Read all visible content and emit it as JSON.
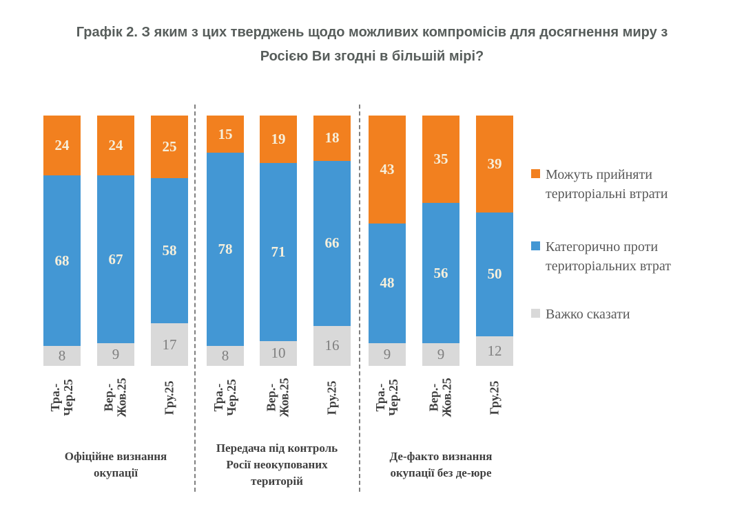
{
  "title": "Графік 2. З яким з цих тверджень щодо можливих компромісів для досягнення миру з\nРосією Ви згодні в більшій мірі?",
  "legend": {
    "items": [
      {
        "name": "accept-territorial-losses",
        "label": "Можуть прийняти\nтериторіальні втрати",
        "color": "#F2801F"
      },
      {
        "name": "against-territorial-losses",
        "label": "Категорично проти\nтериторіальних втрат",
        "color": "#4397D4"
      },
      {
        "name": "hard-to-say",
        "label": "Важко сказати",
        "color": "#D9D9D9"
      }
    ]
  },
  "chart_data": {
    "type": "bar",
    "stacked": true,
    "percent_stacked": true,
    "ylim": [
      0,
      100
    ],
    "grid": false,
    "legend_position": "right",
    "title": "Графік 2. З яким з цих тверджень щодо можливих компромісів для досягнення миру з Росією Ви згодні в більшій мірі?",
    "series_names": [
      "Можуть прийняти територіальні втрати",
      "Категорично проти територіальних втрат",
      "Важко сказати"
    ],
    "series_colors": [
      "#F2801F",
      "#4397D4",
      "#D9D9D9"
    ],
    "groups": [
      {
        "label": "Офіційне визнання\nокупації",
        "categories": [
          "Тра.-\nЧер.25",
          "Вер.-\nЖов.25",
          "Гру.25"
        ],
        "series": [
          {
            "name": "Можуть прийняти територіальні втрати",
            "values": [
              24,
              24,
              25
            ]
          },
          {
            "name": "Категорично проти територіальних втрат",
            "values": [
              68,
              67,
              58
            ]
          },
          {
            "name": "Важко сказати",
            "values": [
              8,
              9,
              17
            ]
          }
        ]
      },
      {
        "label": "Передача під контроль\nРосії неокупованих\nтериторій",
        "categories": [
          "Тра.-\nЧер.25",
          "Вер.-\nЖов.25",
          "Гру.25"
        ],
        "series": [
          {
            "name": "Можуть прийняти територіальні втрати",
            "values": [
              15,
              19,
              18
            ]
          },
          {
            "name": "Категорично проти територіальних втрат",
            "values": [
              78,
              71,
              66
            ]
          },
          {
            "name": "Важко сказати",
            "values": [
              8,
              10,
              16
            ]
          }
        ]
      },
      {
        "label": "Де-факто визнання\nокупації без де-юре",
        "categories": [
          "Тра.-\nЧер.25",
          "Вер.-\nЖов.25",
          "Гру.25"
        ],
        "series": [
          {
            "name": "Можуть прийняти територіальні втрати",
            "values": [
              43,
              35,
              39
            ]
          },
          {
            "name": "Категорично проти територіальних втрат",
            "values": [
              48,
              56,
              50
            ]
          },
          {
            "name": "Важко сказати",
            "values": [
              9,
              9,
              12
            ]
          }
        ]
      }
    ]
  }
}
